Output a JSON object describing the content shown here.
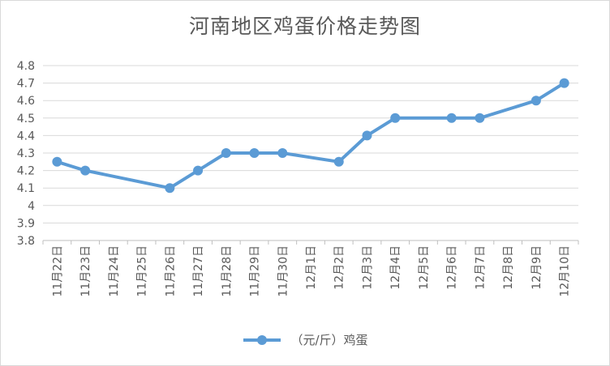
{
  "chart_data": {
    "type": "line",
    "title": "河南地区鸡蛋价格走势图",
    "categories": [
      "11月22日",
      "11月23日",
      "11月24日",
      "11月25日",
      "11月26日",
      "11月27日",
      "11月28日",
      "11月29日",
      "11月30日",
      "12月1日",
      "12月2日",
      "12月3日",
      "12月4日",
      "12月5日",
      "12月6日",
      "12月7日",
      "12月8日",
      "12月9日",
      "12月10日"
    ],
    "series": [
      {
        "name": "（元/斤）鸡蛋",
        "values": [
          4.25,
          4.2,
          null,
          null,
          4.1,
          4.2,
          4.3,
          4.3,
          4.3,
          null,
          4.25,
          4.4,
          4.5,
          null,
          4.5,
          4.5,
          null,
          4.6,
          4.7
        ],
        "color": "#5b9bd5"
      }
    ],
    "ylim": [
      3.8,
      4.8
    ],
    "yticks": [
      "3.8",
      "3.9",
      "4",
      "4.1",
      "4.2",
      "4.3",
      "4.4",
      "4.5",
      "4.6",
      "4.7",
      "4.8"
    ],
    "grid": true,
    "legend": "bottom"
  }
}
